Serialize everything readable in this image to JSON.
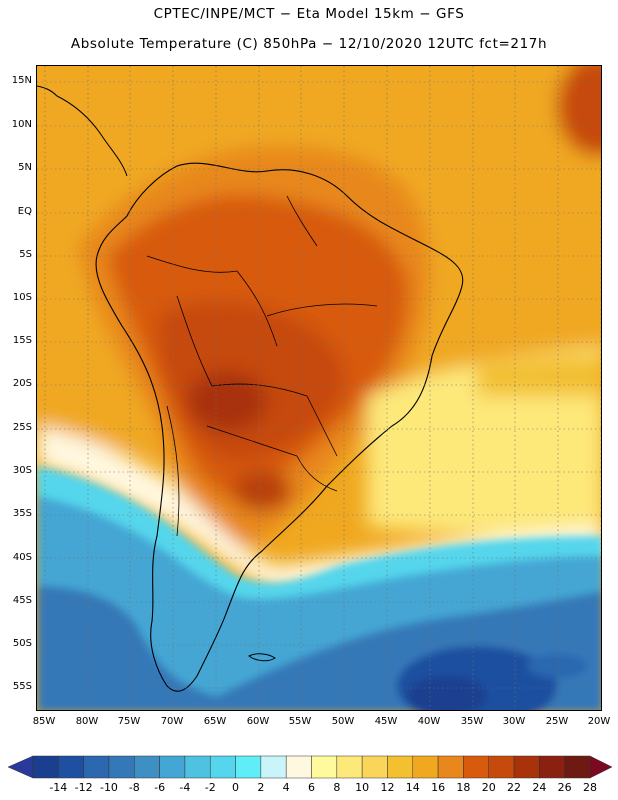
{
  "header": {
    "line1": "CPTEC/INPE/MCT −   Eta Model 15km − GFS",
    "line2": "Absolute Temperature (C) 850hPa − 12/10/2020 12UTC fct=217h"
  },
  "map": {
    "variable": "Absolute Temperature (C) 850hPa",
    "region": "South America",
    "lat_range": [
      -58,
      17
    ],
    "lon_range": [
      -86,
      -20
    ],
    "lat_labels": [
      "15N",
      "10N",
      "5N",
      "EQ",
      "5S",
      "10S",
      "15S",
      "20S",
      "25S",
      "30S",
      "35S",
      "40S",
      "45S",
      "50S",
      "55S"
    ],
    "lon_labels": [
      "85W",
      "80W",
      "75W",
      "70W",
      "65W",
      "60W",
      "55W",
      "50W",
      "45W",
      "40W",
      "35W",
      "30W",
      "25W",
      "20W"
    ]
  },
  "colorbar": {
    "levels": [
      "-14",
      "-12",
      "-10",
      "-8",
      "-6",
      "-4",
      "-2",
      "0",
      "2",
      "4",
      "6",
      "8",
      "10",
      "12",
      "14",
      "16",
      "18",
      "20",
      "22",
      "24",
      "26",
      "28"
    ],
    "colors": [
      "#1a3f8f",
      "#1f4fa0",
      "#2b68b0",
      "#3478b8",
      "#3d8fc4",
      "#44a6d4",
      "#4ec2e0",
      "#55d6ec",
      "#5feef8",
      "#c8f4fa",
      "#fff8e0",
      "#fffa9c",
      "#fde87a",
      "#f9d55a",
      "#f3c030",
      "#f0a820",
      "#e8881c",
      "#d85a0c",
      "#c64a0c",
      "#a8320a",
      "#8a2010",
      "#6e1a12"
    ],
    "under_color": "#2a3a9a",
    "over_color": "#7a0a20"
  }
}
